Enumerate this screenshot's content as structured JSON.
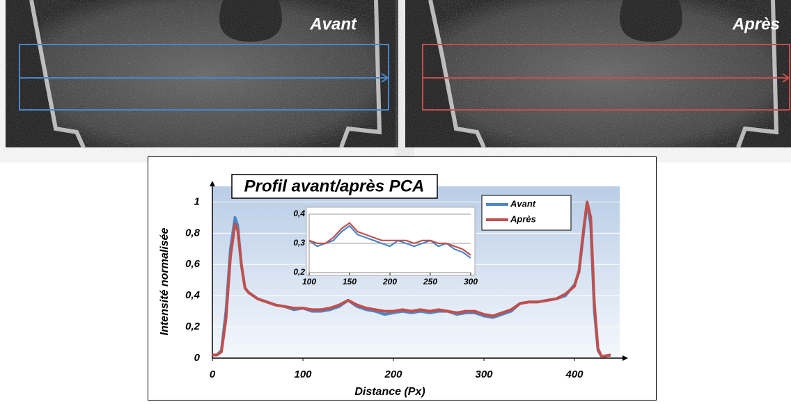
{
  "images": [
    {
      "label": "Avant"
    },
    {
      "label": "Après"
    }
  ],
  "chart_data": [
    {
      "type": "line",
      "title": "Profil avant/après PCA",
      "x_label": "Distance (Px)",
      "y_label": "Intensité normalisée",
      "x": [
        0,
        5,
        10,
        15,
        20,
        25,
        28,
        32,
        36,
        40,
        50,
        60,
        70,
        80,
        90,
        100,
        110,
        120,
        130,
        140,
        150,
        160,
        170,
        180,
        190,
        200,
        210,
        220,
        230,
        240,
        250,
        260,
        270,
        280,
        290,
        300,
        310,
        320,
        330,
        340,
        350,
        360,
        370,
        380,
        390,
        400,
        405,
        410,
        414,
        418,
        422,
        426,
        430,
        440
      ],
      "series": [
        {
          "name": "Avant",
          "color": "#4a86c8",
          "values": [
            0.02,
            0.02,
            0.05,
            0.3,
            0.7,
            0.9,
            0.85,
            0.6,
            0.45,
            0.42,
            0.38,
            0.36,
            0.34,
            0.33,
            0.31,
            0.32,
            0.3,
            0.3,
            0.31,
            0.33,
            0.37,
            0.33,
            0.31,
            0.3,
            0.28,
            0.29,
            0.3,
            0.29,
            0.3,
            0.29,
            0.3,
            0.3,
            0.28,
            0.29,
            0.29,
            0.27,
            0.26,
            0.28,
            0.3,
            0.35,
            0.36,
            0.36,
            0.37,
            0.38,
            0.4,
            0.47,
            0.55,
            0.8,
            1.0,
            0.85,
            0.3,
            0.05,
            0.01,
            0.02
          ]
        },
        {
          "name": "Après",
          "color": "#c0504d",
          "values": [
            0.02,
            0.02,
            0.04,
            0.25,
            0.65,
            0.86,
            0.82,
            0.6,
            0.45,
            0.42,
            0.38,
            0.36,
            0.34,
            0.33,
            0.32,
            0.32,
            0.31,
            0.31,
            0.32,
            0.34,
            0.37,
            0.34,
            0.32,
            0.31,
            0.3,
            0.3,
            0.31,
            0.3,
            0.31,
            0.3,
            0.31,
            0.3,
            0.29,
            0.3,
            0.3,
            0.28,
            0.27,
            0.29,
            0.31,
            0.35,
            0.36,
            0.36,
            0.37,
            0.38,
            0.41,
            0.46,
            0.56,
            0.82,
            1.0,
            0.9,
            0.35,
            0.06,
            0.01,
            0.02
          ]
        }
      ],
      "xlim": [
        0,
        450
      ],
      "ylim": [
        0,
        1.1
      ],
      "xticks": [
        0,
        100,
        200,
        300,
        400
      ],
      "yticks": [
        0,
        {
          "value": 0.2,
          "label": "0,2"
        },
        {
          "value": 0.4,
          "label": "0,4"
        },
        {
          "value": 0.6,
          "label": "0,6"
        },
        {
          "value": 0.8,
          "label": "0,8"
        },
        1
      ],
      "grid": true,
      "legend": "upper right"
    },
    {
      "type": "line",
      "x": [
        100,
        110,
        120,
        130,
        140,
        150,
        160,
        170,
        180,
        190,
        200,
        210,
        220,
        230,
        240,
        250,
        260,
        270,
        280,
        290,
        300
      ],
      "series": [
        {
          "color": "#4a86c8",
          "values": [
            0.31,
            0.29,
            0.3,
            0.31,
            0.34,
            0.36,
            0.33,
            0.32,
            0.31,
            0.3,
            0.29,
            0.31,
            0.3,
            0.29,
            0.3,
            0.31,
            0.29,
            0.3,
            0.28,
            0.27,
            0.25
          ]
        },
        {
          "color": "#c0504d",
          "values": [
            0.31,
            0.3,
            0.3,
            0.32,
            0.35,
            0.37,
            0.34,
            0.33,
            0.32,
            0.31,
            0.31,
            0.31,
            0.31,
            0.3,
            0.31,
            0.31,
            0.3,
            0.3,
            0.29,
            0.28,
            0.26
          ]
        }
      ],
      "xlim": [
        100,
        300
      ],
      "ylim": [
        0.2,
        0.4
      ],
      "xticks": [
        100,
        150,
        200,
        250,
        300
      ],
      "yticks": [
        {
          "value": 0.2,
          "label": "0,2"
        },
        {
          "value": 0.3,
          "label": "0,3"
        },
        {
          "value": 0.4,
          "label": "0,4"
        }
      ],
      "grid": true
    }
  ]
}
